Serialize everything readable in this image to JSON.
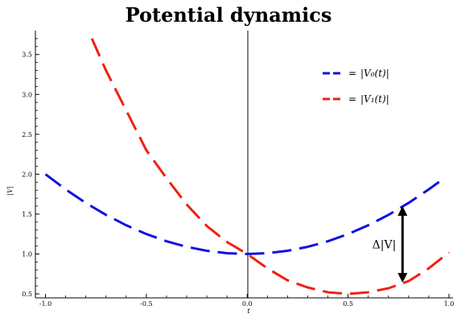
{
  "chart_data": {
    "type": "line",
    "title": "Potential dynamics",
    "xlabel": "t",
    "ylabel": "|V|",
    "xlim": [
      -1.05,
      1.02
    ],
    "ylim": [
      0.45,
      3.8
    ],
    "x_ticks": [
      "-1.0",
      "-0.5",
      "0.0",
      "0.5",
      "1.0"
    ],
    "y_ticks": [
      "0.5",
      "1.0",
      "1.5",
      "2.0",
      "2.5",
      "3.0",
      "3.5"
    ],
    "legend": {
      "position": "top-right",
      "equals": "=",
      "items": [
        "|V₀(t)|",
        "|V₁(t)|"
      ]
    },
    "grid": false,
    "series": [
      {
        "name": "|V₀(t)|",
        "color": "#1010e0",
        "style": "dashed",
        "points": [
          [
            -1.0,
            2.0
          ],
          [
            -0.9,
            1.81
          ],
          [
            -0.8,
            1.64
          ],
          [
            -0.7,
            1.49
          ],
          [
            -0.6,
            1.36
          ],
          [
            -0.5,
            1.25
          ],
          [
            -0.4,
            1.16
          ],
          [
            -0.3,
            1.09
          ],
          [
            -0.2,
            1.04
          ],
          [
            -0.1,
            1.01
          ],
          [
            0.0,
            1.0
          ],
          [
            0.1,
            1.01
          ],
          [
            0.2,
            1.04
          ],
          [
            0.3,
            1.09
          ],
          [
            0.4,
            1.16
          ],
          [
            0.5,
            1.25
          ],
          [
            0.6,
            1.36
          ],
          [
            0.7,
            1.49
          ],
          [
            0.8,
            1.64
          ],
          [
            0.9,
            1.81
          ],
          [
            0.96,
            1.92
          ]
        ]
      },
      {
        "name": "|V₁(t)|",
        "color": "#f02010",
        "style": "dashed",
        "points": [
          [
            -0.77,
            3.7
          ],
          [
            -0.7,
            3.3
          ],
          [
            -0.6,
            2.8
          ],
          [
            -0.5,
            2.3
          ],
          [
            -0.4,
            1.95
          ],
          [
            -0.3,
            1.62
          ],
          [
            -0.2,
            1.35
          ],
          [
            -0.1,
            1.15
          ],
          [
            0.0,
            1.0
          ],
          [
            0.1,
            0.82
          ],
          [
            0.2,
            0.67
          ],
          [
            0.3,
            0.58
          ],
          [
            0.4,
            0.52
          ],
          [
            0.5,
            0.5
          ],
          [
            0.6,
            0.52
          ],
          [
            0.7,
            0.57
          ],
          [
            0.8,
            0.66
          ],
          [
            0.9,
            0.82
          ],
          [
            1.0,
            1.02
          ]
        ]
      }
    ],
    "annotations": [
      {
        "label": "Δ|V|",
        "x": 0.77,
        "y_from": 1.6,
        "y_to": 0.64,
        "arrow": "double"
      }
    ]
  }
}
